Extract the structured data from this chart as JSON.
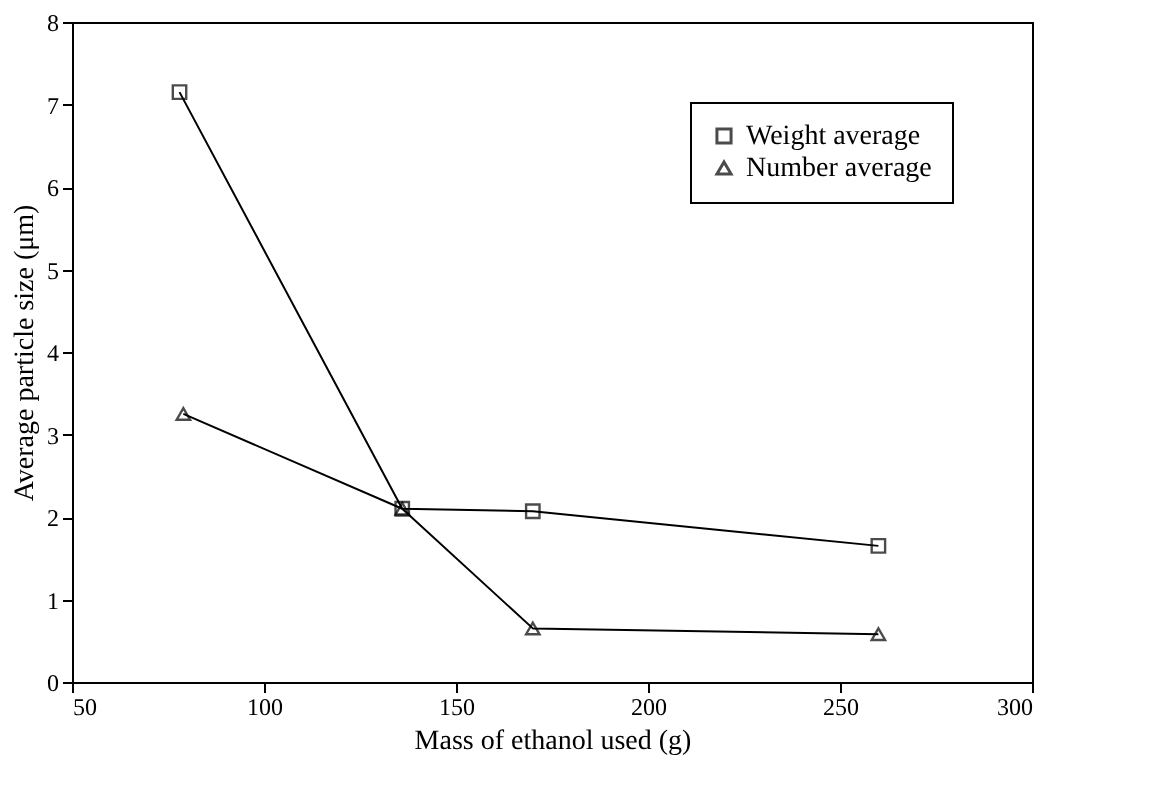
{
  "chart_data": {
    "type": "line",
    "xlabel": "Mass of ethanol used (g)",
    "ylabel": "Average particle size (μm)",
    "xlim": [
      50,
      300
    ],
    "xticks": [
      50,
      100,
      150,
      200,
      250,
      300
    ],
    "ylim": [
      0,
      8
    ],
    "yticks": [
      0,
      1,
      2,
      3,
      4,
      5,
      6,
      7,
      8
    ],
    "grid": false,
    "legend": "top right",
    "line_style": "solid",
    "series": [
      {
        "name": "Weight average",
        "color": "#000000",
        "marker": "square",
        "x": [
          78,
          136,
          170,
          260
        ],
        "values": [
          7.15,
          2.1,
          2.07,
          1.65
        ]
      },
      {
        "name": "Number average",
        "color": "#000000",
        "marker": "triangle",
        "x": [
          79,
          136,
          170,
          260
        ],
        "values": [
          3.25,
          2.1,
          0.65,
          0.58
        ]
      }
    ]
  }
}
